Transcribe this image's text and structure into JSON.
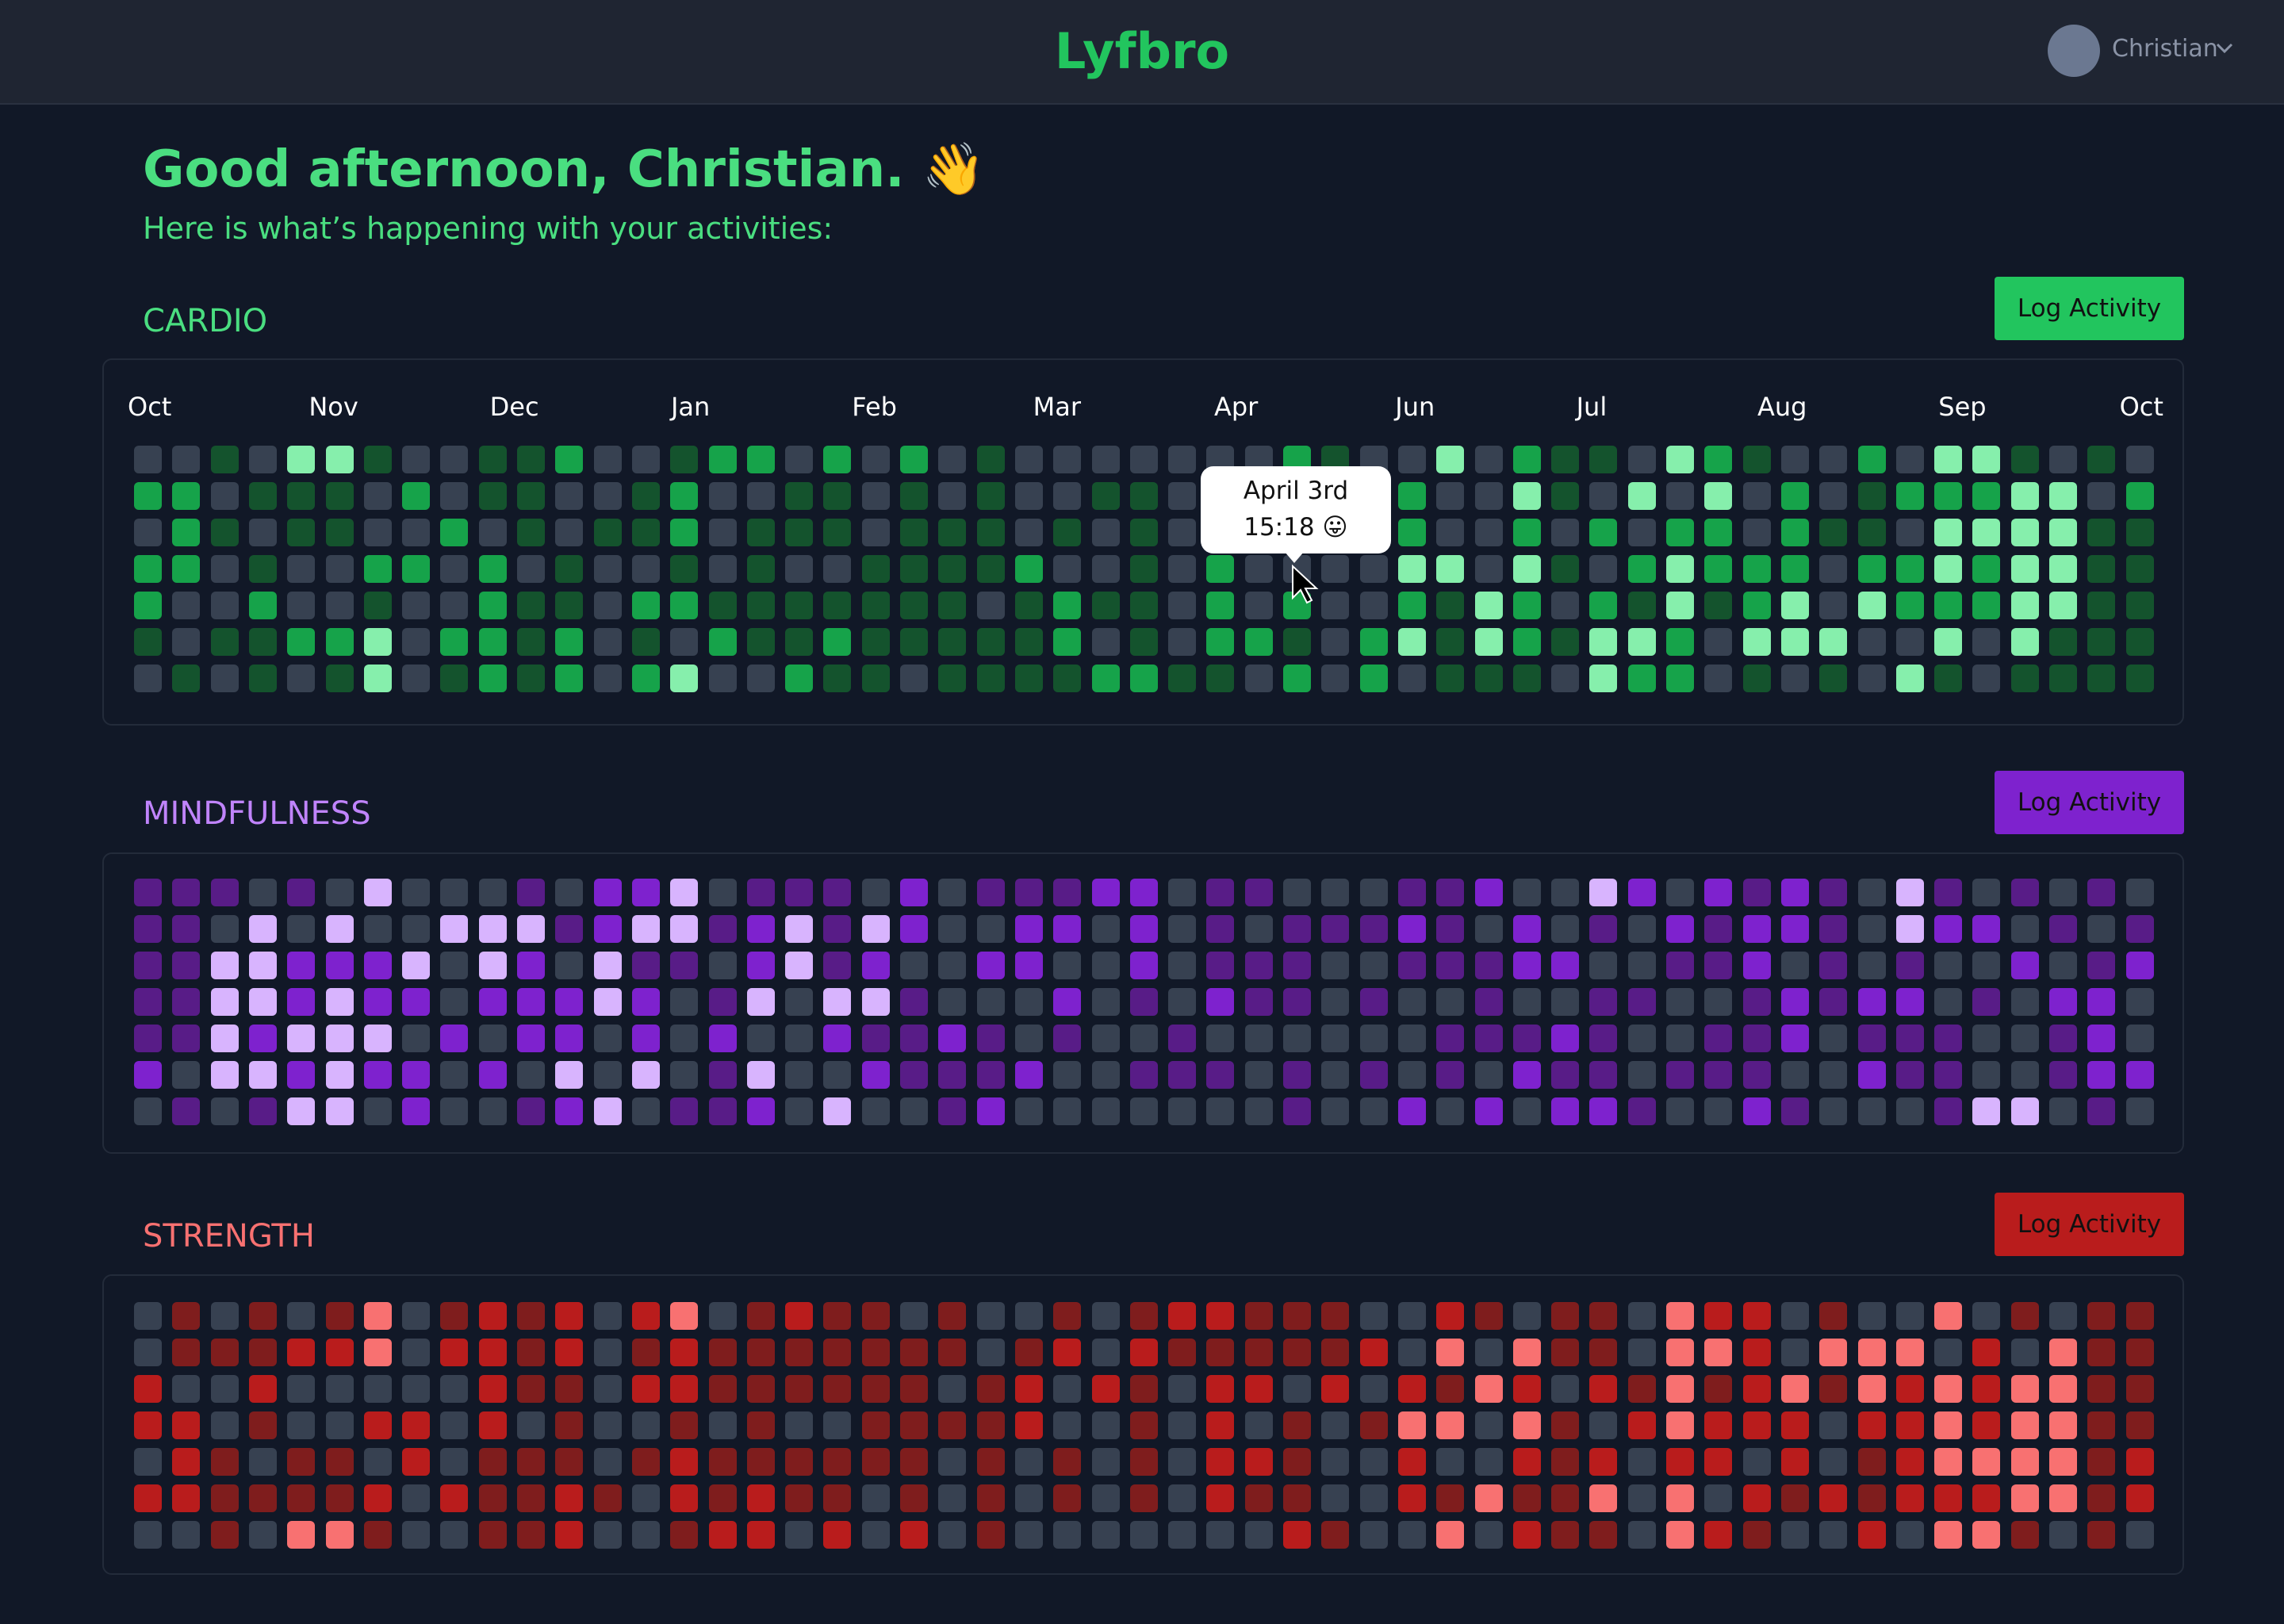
{
  "header": {
    "logo": "Lyfbro",
    "user": "Christian"
  },
  "greeting": {
    "title": "Good afternoon, Christian. 👋",
    "subtitle": "Here is what’s happening with your activities:"
  },
  "sections": [
    {
      "title": "CARDIO",
      "button": "Log Activity",
      "accent": "#22c55e",
      "title_color": "#4ade80",
      "colors": [
        "#374151",
        "#14532d",
        "#16a34a",
        "#86efac"
      ],
      "months": [
        "Oct",
        "Nov",
        "Dec",
        "Jan",
        "Feb",
        "Mar",
        "Apr",
        "Jun",
        "Jul",
        "Aug",
        "Sep",
        "Oct"
      ],
      "tooltip": {
        "date": "April 3rd",
        "time": "15:18 😛"
      },
      "levels": [
        [
          0,
          0,
          1,
          0,
          3,
          3,
          1,
          0,
          0,
          1,
          1,
          2,
          0,
          0,
          1,
          2,
          2,
          0,
          2,
          0,
          2,
          0,
          1,
          0,
          0,
          0,
          0,
          0,
          0,
          0,
          2,
          1,
          0,
          0,
          3,
          0,
          2,
          1,
          1,
          0,
          3,
          2,
          1,
          0,
          0,
          2,
          0,
          3,
          3,
          1,
          0,
          1,
          0
        ],
        [
          2,
          2,
          0,
          1,
          1,
          1,
          0,
          2,
          0,
          1,
          1,
          0,
          0,
          1,
          2,
          0,
          0,
          1,
          1,
          0,
          1,
          0,
          1,
          0,
          0,
          1,
          1,
          0,
          0,
          0,
          0,
          0,
          0,
          2,
          0,
          0,
          3,
          1,
          0,
          3,
          0,
          3,
          0,
          2,
          0,
          1,
          2,
          2,
          2,
          3,
          3,
          0,
          2
        ],
        [
          0,
          2,
          1,
          0,
          1,
          1,
          0,
          0,
          2,
          0,
          1,
          0,
          1,
          1,
          2,
          0,
          1,
          1,
          1,
          0,
          1,
          1,
          1,
          0,
          1,
          0,
          1,
          0,
          0,
          0,
          0,
          0,
          0,
          2,
          0,
          0,
          2,
          0,
          2,
          0,
          2,
          2,
          0,
          2,
          1,
          1,
          0,
          3,
          3,
          3,
          3,
          1,
          1
        ],
        [
          2,
          2,
          0,
          1,
          0,
          0,
          2,
          2,
          0,
          2,
          0,
          1,
          0,
          0,
          1,
          0,
          1,
          0,
          0,
          1,
          1,
          1,
          1,
          2,
          0,
          0,
          1,
          0,
          2,
          0,
          0,
          0,
          0,
          3,
          3,
          0,
          3,
          1,
          0,
          2,
          3,
          2,
          2,
          2,
          0,
          2,
          2,
          3,
          2,
          3,
          3,
          1,
          1
        ],
        [
          2,
          0,
          0,
          2,
          0,
          0,
          1,
          0,
          0,
          2,
          1,
          1,
          0,
          2,
          2,
          1,
          1,
          1,
          1,
          1,
          1,
          1,
          0,
          1,
          2,
          1,
          1,
          0,
          2,
          0,
          2,
          0,
          0,
          2,
          1,
          3,
          2,
          0,
          2,
          1,
          3,
          1,
          2,
          3,
          0,
          3,
          2,
          2,
          2,
          3,
          3,
          1,
          1
        ],
        [
          1,
          0,
          1,
          1,
          2,
          2,
          3,
          0,
          2,
          2,
          1,
          2,
          0,
          1,
          0,
          2,
          1,
          1,
          2,
          1,
          1,
          1,
          1,
          1,
          2,
          0,
          1,
          0,
          2,
          2,
          1,
          0,
          2,
          3,
          1,
          3,
          2,
          1,
          3,
          3,
          2,
          0,
          3,
          3,
          3,
          0,
          0,
          3,
          0,
          3,
          1,
          1,
          1
        ],
        [
          0,
          1,
          0,
          1,
          0,
          1,
          3,
          0,
          1,
          2,
          1,
          2,
          0,
          2,
          3,
          0,
          0,
          2,
          1,
          1,
          0,
          1,
          1,
          1,
          1,
          2,
          2,
          1,
          1,
          0,
          2,
          0,
          2,
          0,
          1,
          1,
          1,
          0,
          3,
          2,
          2,
          0,
          1,
          0,
          1,
          0,
          3,
          1,
          0,
          1,
          1,
          1,
          1
        ]
      ]
    },
    {
      "title": "MINDFULNESS",
      "button": "Log Activity",
      "accent": "#7e22ce",
      "title_color": "#c084fc",
      "colors": [
        "#374151",
        "#581c87",
        "#7e22ce",
        "#d8b4fe"
      ],
      "levels": [
        [
          1,
          1,
          1,
          0,
          1,
          0,
          3,
          0,
          0,
          0,
          1,
          0,
          2,
          2,
          3,
          0,
          1,
          1,
          1,
          0,
          2,
          0,
          1,
          1,
          1,
          2,
          2,
          0,
          1,
          1,
          0,
          0,
          0,
          1,
          1,
          2,
          0,
          0,
          3,
          2,
          0,
          2,
          1,
          2,
          1,
          0,
          3,
          1,
          0,
          1,
          0,
          1,
          0
        ],
        [
          1,
          1,
          0,
          3,
          0,
          3,
          0,
          0,
          3,
          3,
          3,
          1,
          2,
          3,
          3,
          1,
          2,
          3,
          1,
          3,
          2,
          0,
          0,
          2,
          2,
          0,
          2,
          0,
          1,
          0,
          1,
          1,
          1,
          2,
          1,
          0,
          2,
          0,
          1,
          0,
          2,
          1,
          2,
          2,
          1,
          0,
          3,
          2,
          2,
          0,
          1,
          0,
          1
        ],
        [
          1,
          1,
          3,
          3,
          2,
          2,
          2,
          3,
          0,
          3,
          2,
          0,
          3,
          1,
          1,
          0,
          2,
          3,
          1,
          2,
          0,
          0,
          2,
          2,
          0,
          0,
          2,
          0,
          1,
          1,
          1,
          0,
          0,
          1,
          1,
          1,
          2,
          2,
          0,
          0,
          1,
          1,
          2,
          0,
          1,
          0,
          1,
          0,
          0,
          2,
          0,
          1,
          2
        ],
        [
          1,
          1,
          3,
          3,
          2,
          3,
          2,
          2,
          0,
          2,
          2,
          2,
          3,
          2,
          0,
          1,
          3,
          0,
          3,
          3,
          1,
          0,
          0,
          0,
          2,
          0,
          1,
          0,
          2,
          1,
          1,
          0,
          1,
          0,
          0,
          1,
          0,
          0,
          1,
          1,
          0,
          0,
          1,
          2,
          1,
          2,
          2,
          0,
          1,
          0,
          2,
          2,
          0
        ],
        [
          1,
          1,
          3,
          2,
          3,
          3,
          3,
          0,
          2,
          0,
          2,
          2,
          0,
          2,
          0,
          2,
          0,
          0,
          2,
          1,
          1,
          2,
          1,
          0,
          1,
          0,
          0,
          1,
          0,
          0,
          0,
          0,
          0,
          0,
          1,
          1,
          1,
          2,
          1,
          0,
          0,
          1,
          1,
          2,
          0,
          1,
          1,
          1,
          0,
          0,
          1,
          2,
          0
        ],
        [
          2,
          0,
          3,
          3,
          2,
          3,
          2,
          2,
          0,
          2,
          0,
          3,
          0,
          3,
          0,
          1,
          3,
          0,
          0,
          2,
          1,
          1,
          1,
          2,
          0,
          0,
          1,
          1,
          1,
          0,
          1,
          0,
          1,
          0,
          1,
          0,
          2,
          1,
          1,
          0,
          1,
          1,
          1,
          0,
          0,
          2,
          1,
          1,
          0,
          0,
          1,
          2,
          2
        ],
        [
          0,
          1,
          0,
          1,
          3,
          3,
          0,
          2,
          0,
          0,
          1,
          2,
          3,
          0,
          1,
          1,
          2,
          0,
          3,
          0,
          0,
          1,
          2,
          0,
          0,
          0,
          0,
          0,
          0,
          0,
          1,
          0,
          0,
          2,
          0,
          2,
          0,
          2,
          2,
          1,
          0,
          0,
          2,
          1,
          0,
          0,
          0,
          1,
          3,
          3,
          0,
          1,
          0
        ]
      ]
    },
    {
      "title": "STRENGTH",
      "button": "Log Activity",
      "accent": "#b91c1c",
      "title_color": "#f87171",
      "colors": [
        "#374151",
        "#7f1d1d",
        "#b91c1c",
        "#f87171"
      ],
      "levels": [
        [
          0,
          1,
          0,
          1,
          0,
          1,
          3,
          0,
          1,
          2,
          1,
          2,
          0,
          2,
          3,
          0,
          1,
          2,
          1,
          1,
          0,
          1,
          0,
          0,
          1,
          0,
          1,
          2,
          2,
          1,
          1,
          1,
          0,
          0,
          2,
          1,
          0,
          1,
          1,
          0,
          3,
          2,
          2,
          0,
          1,
          0,
          0,
          3,
          0,
          1,
          0,
          1,
          1
        ],
        [
          0,
          1,
          1,
          1,
          2,
          2,
          3,
          0,
          2,
          2,
          1,
          2,
          0,
          1,
          2,
          1,
          1,
          1,
          1,
          1,
          1,
          1,
          0,
          1,
          2,
          0,
          2,
          1,
          1,
          1,
          1,
          1,
          2,
          0,
          3,
          0,
          3,
          1,
          1,
          0,
          3,
          3,
          2,
          0,
          3,
          3,
          3,
          0,
          2,
          0,
          3,
          1,
          1
        ],
        [
          2,
          0,
          0,
          2,
          0,
          0,
          0,
          0,
          0,
          2,
          1,
          1,
          0,
          2,
          2,
          1,
          1,
          1,
          1,
          1,
          1,
          0,
          1,
          2,
          0,
          2,
          1,
          0,
          2,
          2,
          0,
          2,
          0,
          2,
          1,
          3,
          2,
          0,
          2,
          1,
          3,
          1,
          2,
          3,
          1,
          3,
          2,
          3,
          2,
          3,
          3,
          1,
          1
        ],
        [
          2,
          2,
          0,
          1,
          0,
          0,
          2,
          2,
          0,
          2,
          0,
          1,
          0,
          0,
          1,
          0,
          1,
          0,
          0,
          1,
          1,
          1,
          1,
          2,
          0,
          0,
          1,
          0,
          2,
          0,
          1,
          0,
          1,
          3,
          3,
          0,
          3,
          1,
          0,
          2,
          3,
          2,
          2,
          2,
          0,
          2,
          2,
          3,
          2,
          3,
          3,
          1,
          1
        ],
        [
          0,
          2,
          1,
          0,
          1,
          1,
          0,
          2,
          0,
          1,
          1,
          1,
          0,
          1,
          2,
          1,
          1,
          1,
          1,
          1,
          1,
          0,
          1,
          0,
          1,
          0,
          1,
          0,
          2,
          2,
          1,
          0,
          0,
          2,
          0,
          0,
          2,
          1,
          2,
          0,
          2,
          2,
          0,
          2,
          0,
          1,
          2,
          3,
          3,
          3,
          3,
          1,
          2
        ],
        [
          2,
          2,
          1,
          1,
          1,
          1,
          2,
          0,
          2,
          1,
          1,
          2,
          1,
          0,
          2,
          1,
          2,
          1,
          1,
          0,
          1,
          0,
          1,
          0,
          1,
          0,
          1,
          0,
          2,
          1,
          1,
          0,
          0,
          2,
          1,
          3,
          1,
          1,
          3,
          0,
          3,
          0,
          2,
          1,
          2,
          1,
          2,
          2,
          2,
          3,
          3,
          1,
          2
        ],
        [
          0,
          0,
          1,
          0,
          3,
          3,
          1,
          0,
          0,
          1,
          1,
          2,
          0,
          0,
          1,
          2,
          2,
          0,
          2,
          0,
          2,
          0,
          1,
          0,
          0,
          0,
          0,
          0,
          0,
          0,
          2,
          1,
          0,
          0,
          3,
          0,
          2,
          1,
          1,
          0,
          3,
          2,
          1,
          0,
          0,
          2,
          0,
          3,
          3,
          1,
          0,
          1,
          0
        ]
      ]
    }
  ]
}
